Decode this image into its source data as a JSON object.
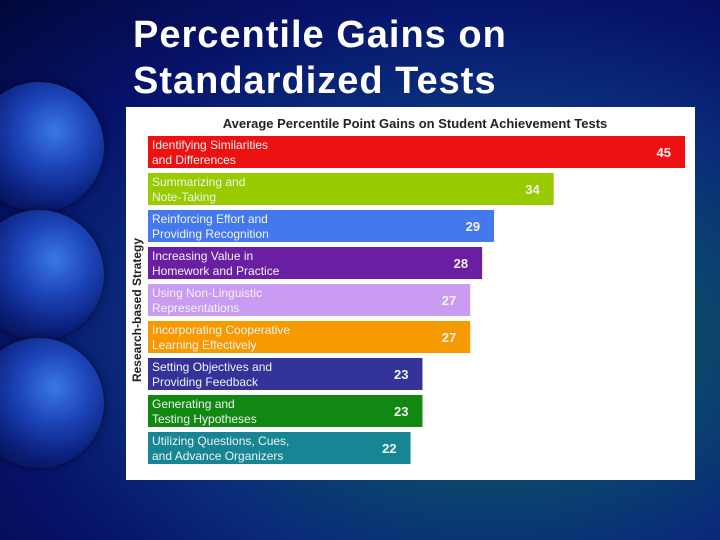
{
  "slide": {
    "title": "Percentile Gains on\nStandardized Tests"
  },
  "colors": {
    "panel_background": "#ffffff",
    "bar_label_text": "#f2f2f2",
    "title_text": "#ffffff"
  },
  "chart_data": {
    "type": "bar",
    "orientation": "horizontal",
    "title": "Average Percentile Point Gains on Student Achievement Tests",
    "xlabel": "",
    "ylabel": "Research-based Strategy",
    "xlim": [
      0,
      45
    ],
    "grid": false,
    "legend": "none",
    "categories": [
      [
        "Identifying Similarities",
        "and Differences"
      ],
      [
        "Summarizing and",
        "Note-Taking"
      ],
      [
        "Reinforcing Effort and",
        "Providing Recognition"
      ],
      [
        "Increasing Value in",
        "Homework and Practice"
      ],
      [
        "Using Non-Linguistic",
        "Representations"
      ],
      [
        "Incorporating Cooperative",
        "Learning Effectively"
      ],
      [
        "Setting Objectives and",
        "Providing Feedback"
      ],
      [
        "Generating and",
        "Testing Hypotheses"
      ],
      [
        "Utilizing Questions, Cues,",
        "and Advance Organizers"
      ]
    ],
    "values": [
      45,
      34,
      29,
      28,
      27,
      27,
      23,
      23,
      22
    ],
    "bar_colors": [
      "#ee1111",
      "#99cc00",
      "#4479ee",
      "#6a1fa2",
      "#c99cf2",
      "#f79a00",
      "#33339a",
      "#118811",
      "#178694"
    ]
  }
}
